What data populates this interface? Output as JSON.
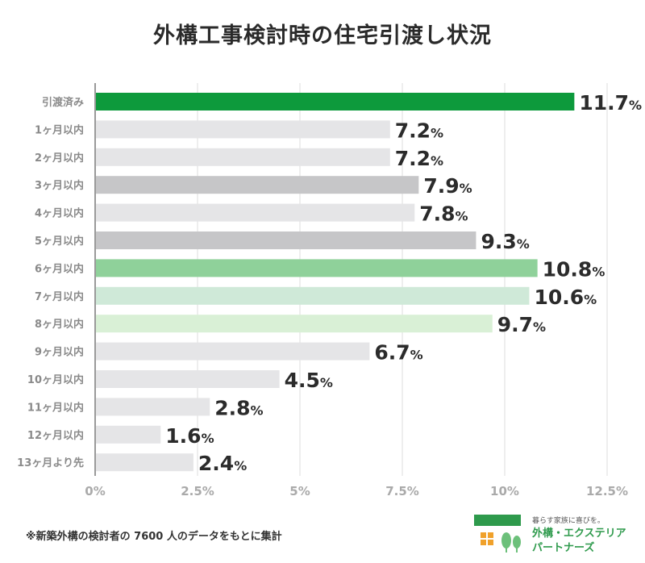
{
  "title": "外構工事検討時の住宅引渡し状況",
  "footnote": "※新築外構の検討者の 7600 人のデータをもとに集計",
  "logo": {
    "tagline": "暮らす家族に喜びを。",
    "name_line1": "外構・エクステリア",
    "name_line2": "パートナーズ",
    "icon": "house-trees-logo-icon"
  },
  "colors": {
    "highlight": "#0d9a3c",
    "green_mid": "#8fd19a",
    "green_light": "#cfe9d8",
    "green_pale": "#d9f0d6",
    "gray_dark": "#c6c6c8",
    "gray_light": "#e5e5e7"
  },
  "chart_data": {
    "type": "bar",
    "orientation": "horizontal",
    "title": "外構工事検討時の住宅引渡し状況",
    "categories": [
      "引渡済み",
      "1ヶ月以内",
      "2ヶ月以内",
      "3ヶ月以内",
      "4ヶ月以内",
      "5ヶ月以内",
      "6ヶ月以内",
      "7ヶ月以内",
      "8ヶ月以内",
      "9ヶ月以内",
      "10ヶ月以内",
      "11ヶ月以内",
      "12ヶ月以内",
      "13ヶ月より先"
    ],
    "values": [
      11.7,
      7.2,
      7.2,
      7.9,
      7.8,
      9.3,
      10.8,
      10.6,
      9.7,
      6.7,
      4.5,
      2.8,
      1.6,
      2.4
    ],
    "value_labels": [
      "11.7",
      "7.2",
      "7.2",
      "7.9",
      "7.8",
      "9.3",
      "10.8",
      "10.6",
      "9.7",
      "6.7",
      "4.5",
      "2.8",
      "1.6",
      "2.4"
    ],
    "value_suffix": "%",
    "bar_colors": [
      "#0d9a3c",
      "#e5e5e7",
      "#e5e5e7",
      "#c6c6c8",
      "#e5e5e7",
      "#c6c6c8",
      "#8fd19a",
      "#cfe9d8",
      "#d9f0d6",
      "#e5e5e7",
      "#e5e5e7",
      "#e5e5e7",
      "#e5e5e7",
      "#e5e5e7"
    ],
    "xlim": [
      0,
      12.5
    ],
    "xticks": [
      0,
      2.5,
      5,
      7.5,
      10,
      12.5
    ],
    "xtick_labels": [
      "0%",
      "2.5%",
      "5%",
      "7.5%",
      "10%",
      "12.5%"
    ],
    "xlabel": "",
    "ylabel": "",
    "grid": true,
    "legend": "none"
  }
}
